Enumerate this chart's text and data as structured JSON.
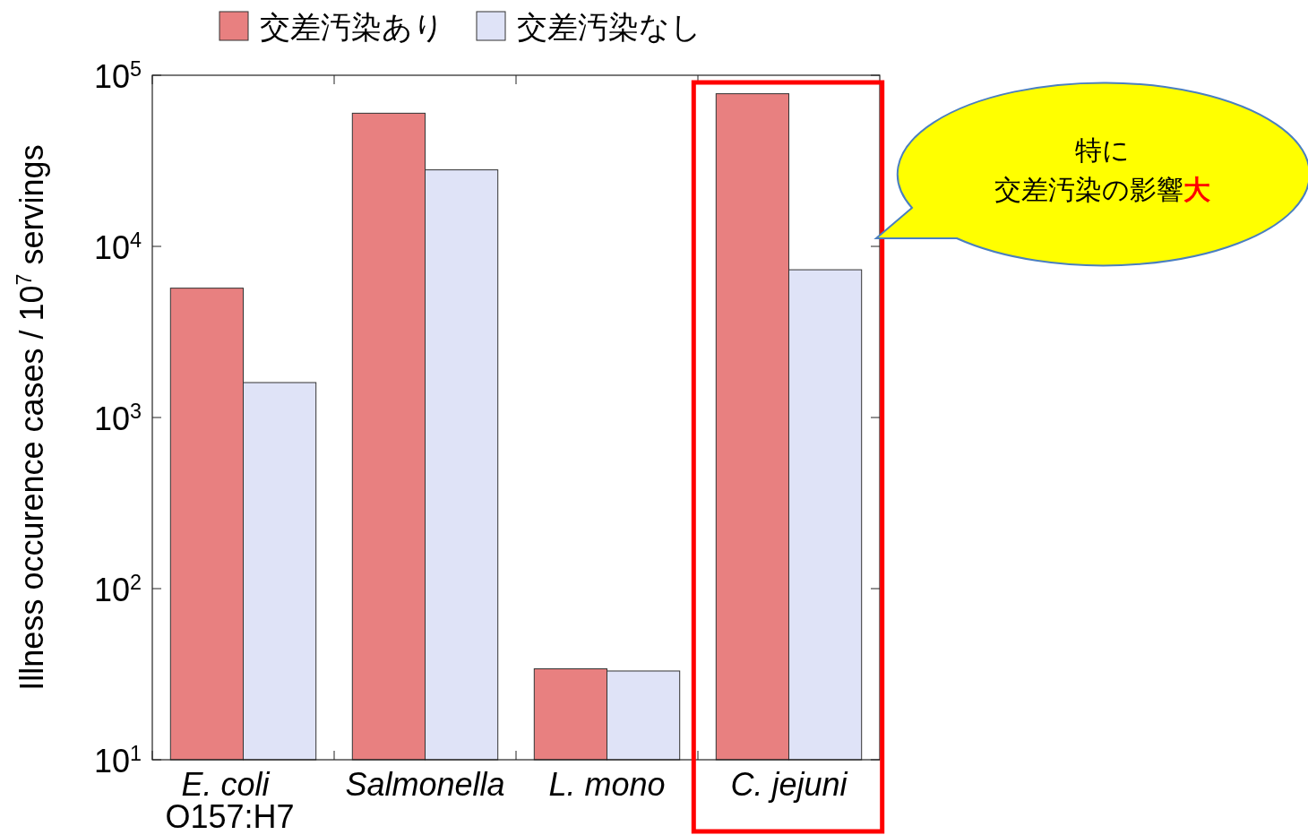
{
  "chart_data": {
    "type": "bar",
    "categories": [
      "E. coli\nO157:H7",
      "Salmonella",
      "L. mono",
      "C. jejuni"
    ],
    "series": [
      {
        "name": "交差汚染あり",
        "color": "#e88080",
        "values": [
          5700,
          60000,
          34,
          78000
        ]
      },
      {
        "name": "交差汚染なし",
        "color": "#dfe3f7",
        "values": [
          1600,
          28000,
          33,
          7300
        ]
      }
    ],
    "ylabel": "Illness occurence cases / 10$^{7}$ servings",
    "log": "y",
    "ylim": [
      10,
      100000
    ],
    "yticks": [
      {
        "value": 10,
        "label": "10$^{1}$"
      },
      {
        "value": 100,
        "label": "10$^{2}$"
      },
      {
        "value": 1000,
        "label": "10$^{3}$"
      },
      {
        "value": 10000,
        "label": "10$^{4}$"
      },
      {
        "value": 100000,
        "label": "10$^{5}$"
      }
    ],
    "legend": "top",
    "grid": false,
    "annotations": [
      "特に",
      "交差汚染の影響大"
    ]
  }
}
